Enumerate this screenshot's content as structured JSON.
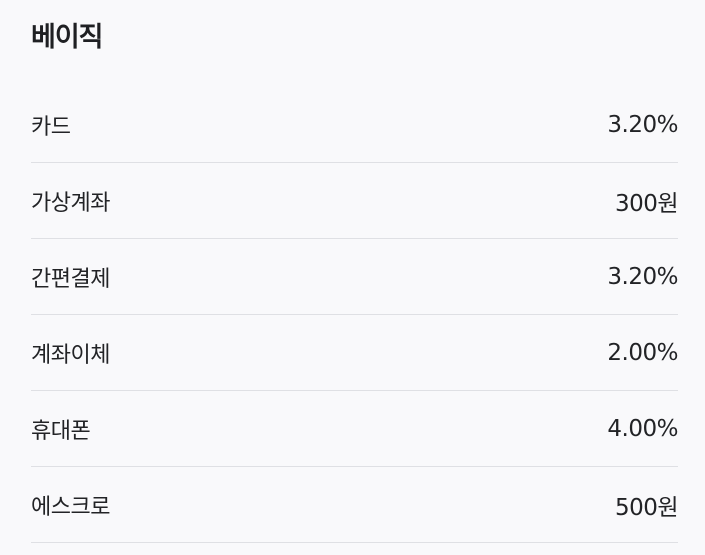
{
  "plan": {
    "title": "베이직",
    "fees": [
      {
        "label": "카드",
        "value": "3.20%"
      },
      {
        "label": "가상계좌",
        "value": "300원"
      },
      {
        "label": "간편결제",
        "value": "3.20%"
      },
      {
        "label": "계좌이체",
        "value": "2.00%"
      },
      {
        "label": "휴대폰",
        "value": "4.00%"
      },
      {
        "label": "에스크로",
        "value": "500원"
      }
    ]
  }
}
